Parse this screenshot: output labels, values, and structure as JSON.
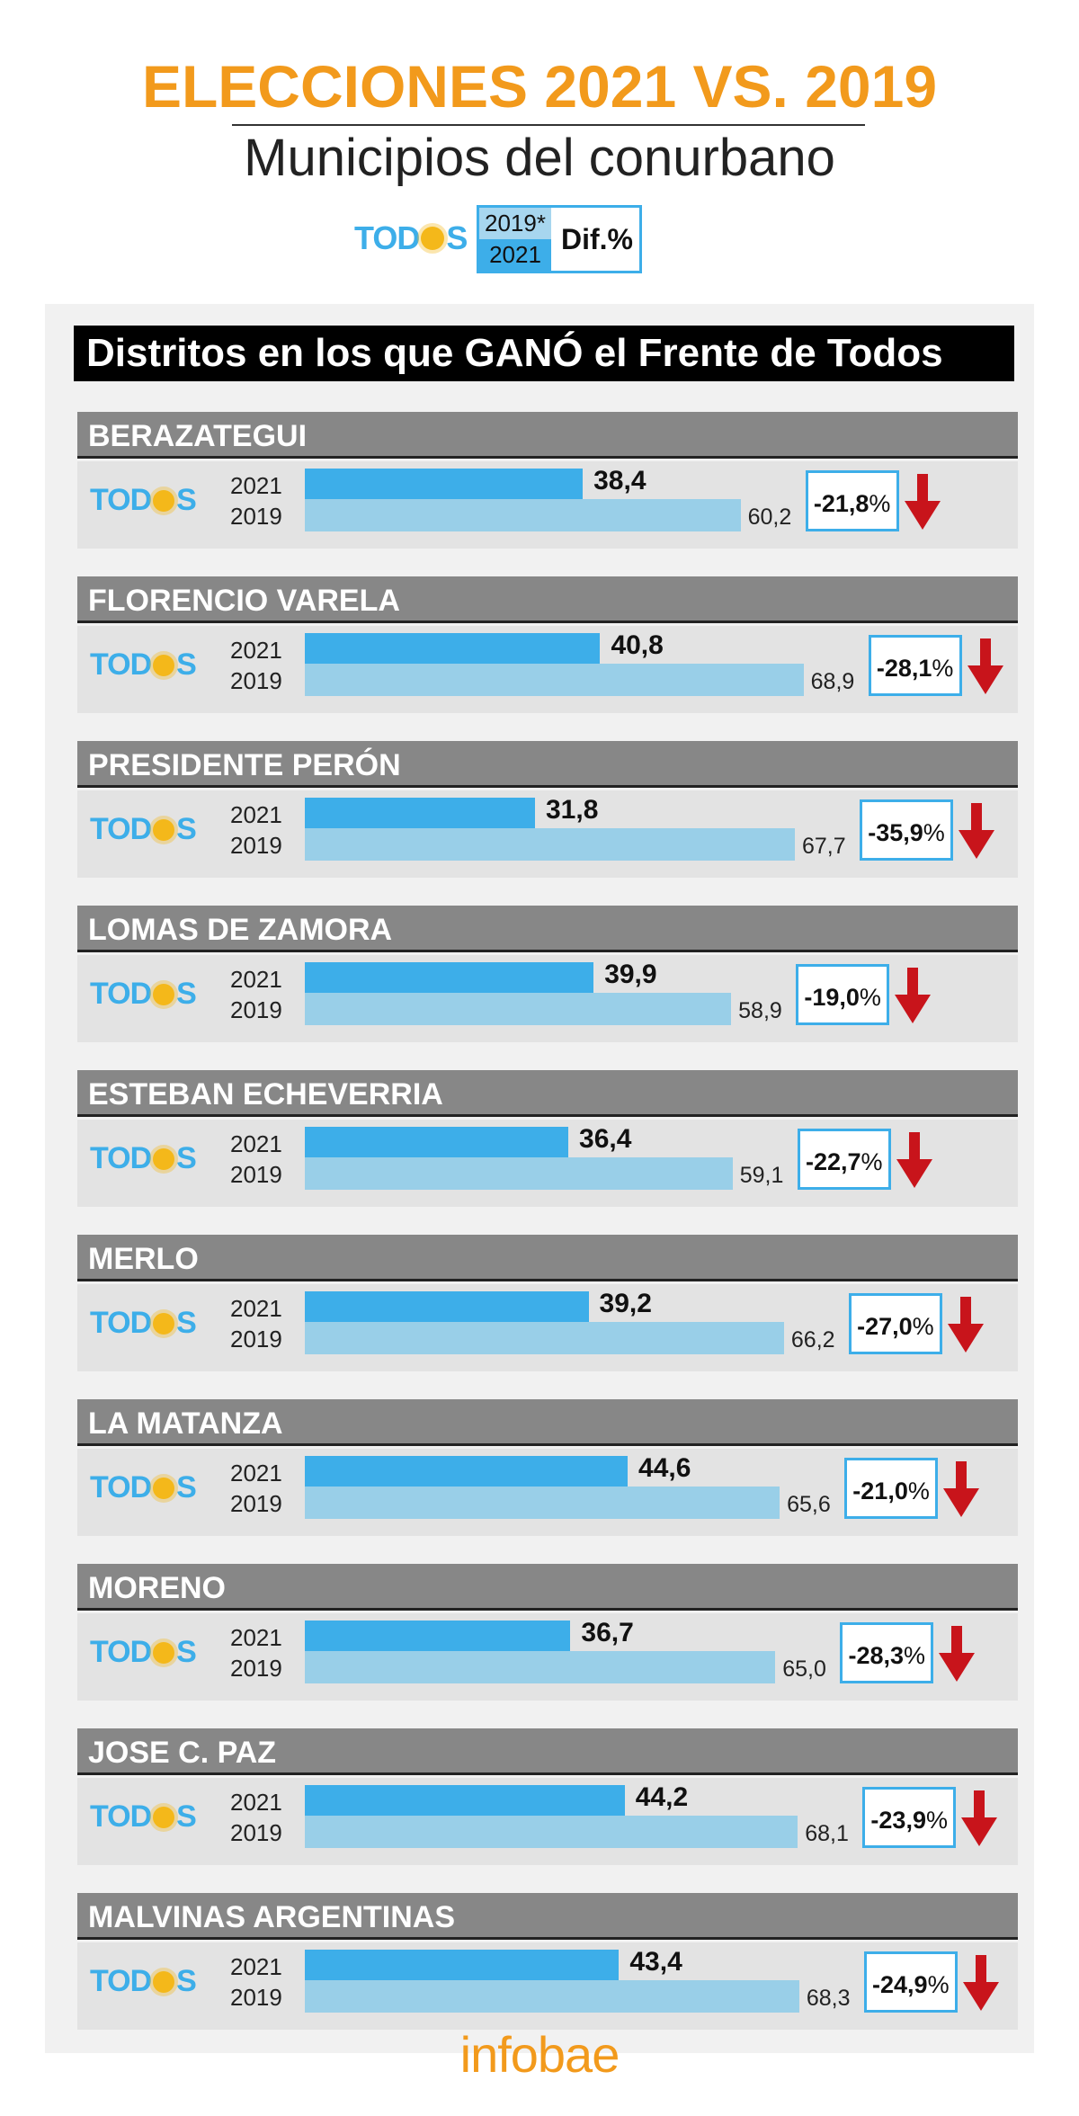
{
  "header": {
    "title": "ELECCIONES 2021 VS. 2019",
    "subtitle": "Municipios del conurbano"
  },
  "legend": {
    "logo_text": "TODOS",
    "year_a": "2019*",
    "year_b": "2021",
    "diff_label": "Dif.%"
  },
  "section_title": "Distritos en los que GANÓ el Frente de Todos",
  "logo": {
    "left": "TOD",
    "right": "S"
  },
  "colors": {
    "bar_2021": "#3daee9",
    "bar_2019": "#99cfe8",
    "accent_orange": "#f29a1c",
    "arrow_red": "#c8141b"
  },
  "chart_data": {
    "type": "bar",
    "title": "ELECCIONES 2021 VS. 2019",
    "subtitle": "Municipios del conurbano",
    "series_names": [
      "2021",
      "2019"
    ],
    "xlim": [
      0,
      100
    ],
    "categories": [
      "BERAZATEGUI",
      "FLORENCIO VARELA",
      "PRESIDENTE PERÓN",
      "LOMAS DE ZAMORA",
      "ESTEBAN ECHEVERRIA",
      "MERLO",
      "LA MATANZA",
      "MORENO",
      "JOSE C. PAZ",
      "MALVINAS ARGENTINAS"
    ],
    "districts": [
      {
        "name": "BERAZATEGUI",
        "v2021": "38,4",
        "v2019": "60,2",
        "diff": "-21,8",
        "pct": "%"
      },
      {
        "name": "FLORENCIO VARELA",
        "v2021": "40,8",
        "v2019": "68,9",
        "diff": "-28,1",
        "pct": "%"
      },
      {
        "name": "PRESIDENTE PERÓN",
        "v2021": "31,8",
        "v2019": "67,7",
        "diff": "-35,9",
        "pct": "%"
      },
      {
        "name": "LOMAS DE ZAMORA",
        "v2021": "39,9",
        "v2019": "58,9",
        "diff": "-19,0",
        "pct": "%"
      },
      {
        "name": "ESTEBAN ECHEVERRIA",
        "v2021": "36,4",
        "v2019": "59,1",
        "diff": "-22,7",
        "pct": "%"
      },
      {
        "name": "MERLO",
        "v2021": "39,2",
        "v2019": "66,2",
        "diff": "-27,0",
        "pct": "%"
      },
      {
        "name": "LA MATANZA",
        "v2021": "44,6",
        "v2019": "65,6",
        "diff": "-21,0",
        "pct": "%"
      },
      {
        "name": "MORENO",
        "v2021": "36,7",
        "v2019": "65,0",
        "diff": "-28,3",
        "pct": "%"
      },
      {
        "name": "JOSE C. PAZ",
        "v2021": "44,2",
        "v2019": "68,1",
        "diff": "-23,9",
        "pct": "%"
      },
      {
        "name": "MALVINAS ARGENTINAS",
        "v2021": "43,4",
        "v2019": "68,3",
        "diff": "-24,9",
        "pct": "%"
      }
    ],
    "year_labels": {
      "a": "2021",
      "b": "2019"
    }
  },
  "footer": {
    "brand": "infobae"
  }
}
